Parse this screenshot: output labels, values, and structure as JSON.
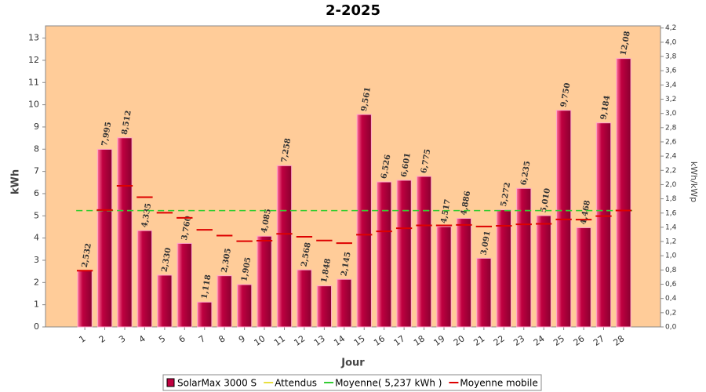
{
  "chart_data": {
    "type": "bar",
    "title": "2-2025",
    "xlabel": "Jour",
    "ylabel": "kWh",
    "y2label": "kWh/kWp",
    "x": [
      1,
      2,
      3,
      4,
      5,
      6,
      7,
      8,
      9,
      10,
      11,
      12,
      13,
      14,
      15,
      16,
      17,
      18,
      19,
      20,
      21,
      22,
      23,
      24,
      25,
      26,
      27,
      28
    ],
    "xlim": [
      -0.97,
      29.85
    ],
    "ylim": [
      0,
      13.55
    ],
    "yticks": [
      0,
      1,
      2,
      3,
      4,
      5,
      6,
      7,
      8,
      9,
      10,
      11,
      12,
      13
    ],
    "y2lim": [
      0,
      4.23
    ],
    "y2ticks": [
      {
        "value": 0,
        "label": "0,0"
      },
      {
        "value": 0.2,
        "label": "0,2"
      },
      {
        "value": 0.4,
        "label": "0,4"
      },
      {
        "value": 0.6,
        "label": "0,6"
      },
      {
        "value": 0.8,
        "label": "0,8"
      },
      {
        "value": 1.0,
        "label": "1,0"
      },
      {
        "value": 1.2,
        "label": "1,2"
      },
      {
        "value": 1.4,
        "label": "1,4"
      },
      {
        "value": 1.6,
        "label": "1,6"
      },
      {
        "value": 1.8,
        "label": "1,8"
      },
      {
        "value": 2.0,
        "label": "2,0"
      },
      {
        "value": 2.2,
        "label": "2,2"
      },
      {
        "value": 2.4,
        "label": "2,4"
      },
      {
        "value": 2.6,
        "label": "2,6"
      },
      {
        "value": 2.8,
        "label": "2,8"
      },
      {
        "value": 3.0,
        "label": "3,0"
      },
      {
        "value": 3.2,
        "label": "3,2"
      },
      {
        "value": 3.4,
        "label": "3,4"
      },
      {
        "value": 3.6,
        "label": "3,6"
      },
      {
        "value": 3.8,
        "label": "3,8"
      },
      {
        "value": 4.0,
        "label": "4,0"
      },
      {
        "value": 4.2,
        "label": "4,2"
      }
    ],
    "series": [
      {
        "name": "SolarMax 3000 S",
        "type": "bar",
        "color": "#c00040",
        "values": [
          2.532,
          7.995,
          8.512,
          4.335,
          2.33,
          3.76,
          1.118,
          2.305,
          1.905,
          4.085,
          7.258,
          2.568,
          1.848,
          2.145,
          9.561,
          6.526,
          6.601,
          6.775,
          4.517,
          4.886,
          3.091,
          5.272,
          6.235,
          5.01,
          9.75,
          4.468,
          9.184,
          12.08
        ],
        "value_labels": [
          "2,532",
          "7,995",
          "8,512",
          "4,335",
          "2,330",
          "3,760",
          "1,118",
          "2,305",
          "1,905",
          "4,085",
          "7,258",
          "2,568",
          "1,848",
          "2,145",
          "9,561",
          "6,526",
          "6,601",
          "6,775",
          "4,517",
          "4,886",
          "3,091",
          "5,272",
          "6,235",
          "5,010",
          "9,750",
          "4,468",
          "9,184",
          "12,08"
        ]
      },
      {
        "name": "Attendus",
        "type": "line",
        "color": "#e8e040",
        "values": [
          5.237,
          5.237,
          5.237,
          5.237,
          5.237,
          5.237,
          5.237,
          5.237,
          5.237,
          5.237,
          5.237,
          5.237,
          5.237,
          5.237,
          5.237,
          5.237,
          5.237,
          5.237,
          5.237,
          5.237,
          5.237,
          5.237,
          5.237,
          5.237,
          5.237,
          5.237,
          5.237,
          5.237
        ]
      },
      {
        "name": "Moyenne( 5,237 kWh )",
        "type": "line",
        "color": "#33cc33",
        "values": [
          5.237,
          5.237,
          5.237,
          5.237,
          5.237,
          5.237,
          5.237,
          5.237,
          5.237,
          5.237,
          5.237,
          5.237,
          5.237,
          5.237,
          5.237,
          5.237,
          5.237,
          5.237,
          5.237,
          5.237,
          5.237,
          5.237,
          5.237,
          5.237,
          5.237,
          5.237,
          5.237,
          5.237
        ]
      },
      {
        "name": "Moyenne mobile",
        "type": "step",
        "color": "#dd0000",
        "values": [
          2.53,
          5.26,
          6.35,
          5.84,
          5.14,
          4.91,
          4.37,
          4.11,
          3.86,
          3.88,
          4.19,
          4.06,
          3.89,
          3.77,
          4.15,
          4.3,
          4.44,
          4.57,
          4.57,
          4.59,
          4.52,
          4.55,
          4.62,
          4.64,
          4.84,
          4.83,
          4.99,
          5.24
        ]
      }
    ]
  }
}
